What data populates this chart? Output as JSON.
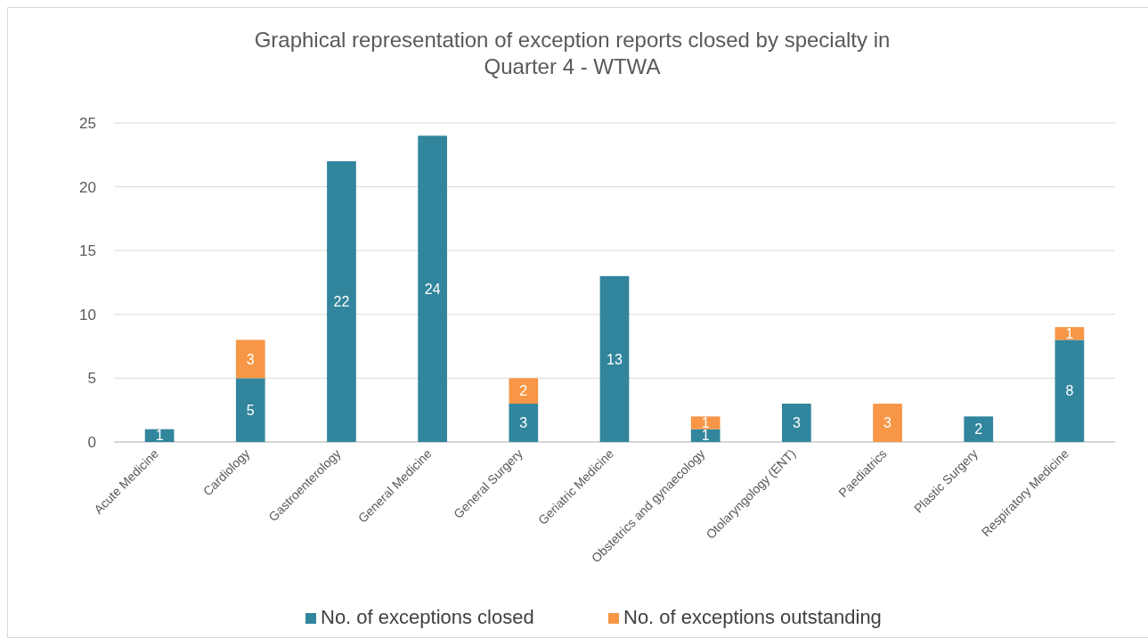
{
  "chart_data": {
    "type": "bar",
    "title": "Graphical representation of exception reports closed by specialty in Quarter 4 - WTWA",
    "categories": [
      "Acute Medicine",
      "Cardiology",
      "Gastroenterology",
      "General Medicine",
      "General Surgery",
      "Geriatric Medicine",
      "Obstetrics and gynaecology",
      "Otolaryngology (ENT)",
      "Paediatrics",
      "Plastic Surgery",
      "Respiratory Medicine"
    ],
    "series": [
      {
        "name": "No. of exceptions closed",
        "color": "#31859c",
        "values": [
          1,
          5,
          22,
          24,
          3,
          13,
          1,
          3,
          null,
          2,
          8
        ]
      },
      {
        "name": "No. of exceptions outstanding",
        "color": "#f79646",
        "values": [
          null,
          3,
          null,
          null,
          2,
          null,
          1,
          null,
          3,
          null,
          1
        ]
      }
    ],
    "stacked": true,
    "ylim": [
      0,
      25
    ],
    "yticks": [
      0,
      5,
      10,
      15,
      20,
      25
    ],
    "grid": "y",
    "legend": "bottom",
    "data_labels": true
  }
}
